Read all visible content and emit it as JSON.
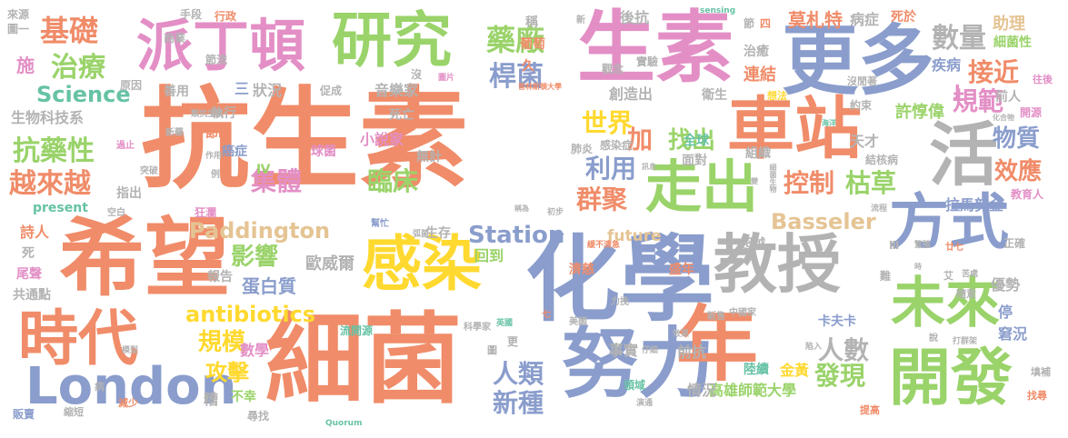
{
  "palette": {
    "salmon": "#f08c69",
    "green": "#9ad36a",
    "blue": "#8a9dcc",
    "pink": "#e38fc6",
    "yellow": "#ffd92f",
    "teal": "#66c2a5",
    "tan": "#e5c494",
    "gray": "#b3b3b3"
  },
  "words": {
    "w01": "抗生素",
    "w02": "生素",
    "w03": "化學",
    "w04": "細菌",
    "w05": "希望",
    "w06": "更多",
    "w07": "車站",
    "w08": "努力",
    "w09": "教授",
    "w10": "方式",
    "w11": "年",
    "w12": "研究",
    "w13": "感染",
    "w14": "時代",
    "w15": "開發",
    "w16": "London",
    "w17": "派丁頓",
    "w18": "走出",
    "w19": "未來",
    "w20": "活",
    "w21": "Paddington",
    "w22": "antibiotics",
    "w23": "Station",
    "w24": "Basseler",
    "w25": "Science",
    "w26": "基礎",
    "w27": "治療",
    "w28": "藥廠",
    "w29": "桿菌",
    "w30": "抗藥性",
    "w31": "越來越",
    "w32": "集體",
    "w33": "臨床",
    "w34": "世界",
    "w35": "利用",
    "w36": "群聚",
    "w37": "控制",
    "w38": "枯草",
    "w39": "數量",
    "w40": "接近",
    "w41": "規範",
    "w42": "物質",
    "w43": "效應",
    "w44": "影響",
    "w45": "規模",
    "w46": "攻擊",
    "w47": "人類",
    "w48": "新種",
    "w49": "發現",
    "w50": "人數",
    "w51": "找出",
    "w52": "莫札特",
    "w53": "病症",
    "w54": "細菌性",
    "w55": "助理",
    "w56": "疾病",
    "w57": "連結",
    "w58": "治癒",
    "w59": "衛生",
    "w60": "許惇偉",
    "w61": "天才",
    "w62": "拉馬努金",
    "w63": "高雄師範大學",
    "w64": "金黃",
    "w65": "卡夫卡",
    "w66": "蛋白質",
    "w67": "歐威爾",
    "w68": "報告",
    "w69": "生存",
    "w70": "回到",
    "w71": "濟慈",
    "w72": "盛年",
    "w73": "超越",
    "w74": "future",
    "w75": "present",
    "w76": "詩人",
    "w77": "尾聲",
    "w78": "共通點",
    "w79": "不幸",
    "w80": "尋找",
    "w81": "糟",
    "w82": "數學",
    "w83": "事實",
    "w84": "前抗",
    "w85": "情況",
    "w86": "陸續",
    "w87": "全球",
    "w88": "面對",
    "w89": "組織",
    "w90": "結核病",
    "w91": "肺炎",
    "w92": "感染症",
    "w93": "無計",
    "w94": "小說家",
    "w95": "音樂家",
    "w96": "創造出",
    "w97": "生物科技系",
    "w98": "善用",
    "w99": "執行",
    "w100": "節制",
    "w101": "癌症",
    "w102": "球菌",
    "w103": "狀況",
    "w104": "死亡",
    "w105": "加",
    "w106": "停",
    "w107": "窘況",
    "w108": "優勢",
    "w109": "正確",
    "w110": "前人",
    "w111": "約束",
    "w112": "教育人",
    "w113": "開源",
    "w114": "往後",
    "w115": "沒閒著",
    "w116": "想法",
    "w117": "後抗",
    "w118": "死於",
    "w119": "葡萄",
    "w120": "稱",
    "w121": "觀念",
    "w122": "實驗",
    "w123": "久",
    "w124": "沒",
    "w125": "促成",
    "w126": "原因",
    "w127": "手段",
    "w128": "行政",
    "w129": "商業",
    "w130": "節流",
    "w131": "施",
    "w132": "來源",
    "w133": "圖一",
    "w134": "節",
    "w135": "四",
    "w136": "sensing",
    "w137": "新",
    "w138": "Quorum",
    "w139": "科學家",
    "w140": "英國",
    "w141": "流開源",
    "w142": "美國",
    "w143": "中國家",
    "w144": "販售",
    "w145": "領域",
    "w146": "演通",
    "w147": "提高",
    "w148": "找尋",
    "w149": "填補",
    "w150": "打群架",
    "w151": "說",
    "w152": "陷入",
    "w153": "效果",
    "w154": "仔細",
    "w155": "力挽",
    "w156": "七",
    "w157": "模型",
    "w158": "減少",
    "w159": "縮短",
    "w160": "病",
    "w161": "販賣",
    "w162": "幫忙",
    "w163": "緩不濟急",
    "w164": "廿七",
    "w165": "難",
    "w166": "隨意",
    "w167": "艾",
    "w168": "苦處",
    "w169": "流程",
    "w170": "Ⅳ",
    "w171": "Ⅲ",
    "w172": "J",
    "w173": "三",
    "w174": "死",
    "w175": "更",
    "w176": "圖",
    "w177": "作用",
    "w178": "突破",
    "w179": "例",
    "w180": "空白",
    "w181": "狂瀾",
    "w182": "指出",
    "w183": "新藥",
    "w184": "過止",
    "w185": "類抗生素",
    "w186": "化合物",
    "w187": "海洋",
    "w188": "普林斯頓大學",
    "w189": "圖片",
    "w190": "初步",
    "w191": "稱為",
    "w192": "訊息",
    "w193": "弧菌",
    "w194": "繁殖",
    "w195": "細菌生物",
    "w196": "變",
    "w197": "時"
  }
}
